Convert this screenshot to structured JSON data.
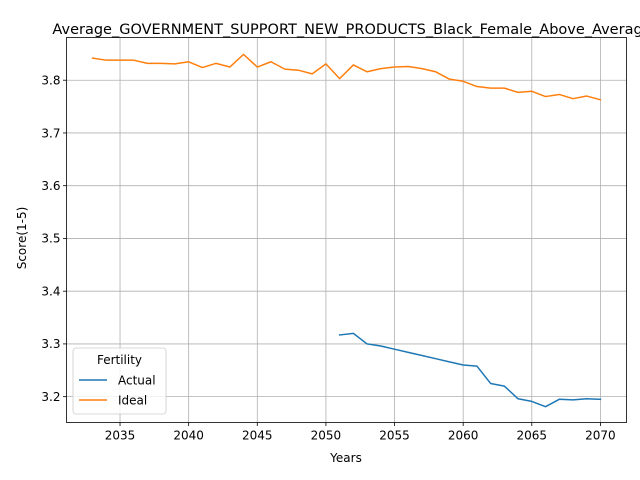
{
  "chart_data": {
    "type": "line",
    "title": "Average_GOVERNMENT_SUPPORT_NEW_PRODUCTS_Black_Female_Above_Average",
    "xlabel": "Years",
    "ylabel": "Score(1-5)",
    "xlim": [
      2031.1,
      2071.9
    ],
    "ylim": [
      3.151,
      3.881
    ],
    "xticks": [
      2035,
      2040,
      2045,
      2050,
      2055,
      2060,
      2065,
      2070
    ],
    "yticks": [
      3.2,
      3.3,
      3.4,
      3.5,
      3.6,
      3.7,
      3.8
    ],
    "xtick_labels": [
      "2035",
      "2040",
      "2045",
      "2050",
      "2055",
      "2060",
      "2065",
      "2070"
    ],
    "ytick_labels": [
      "3.2",
      "3.3",
      "3.4",
      "3.5",
      "3.6",
      "3.7",
      "3.8"
    ],
    "grid": true,
    "legend": {
      "title": "Fertility",
      "location": "lower-left"
    },
    "series": [
      {
        "name": "Actual",
        "color": "#1f77b4",
        "x": [
          2051,
          2052,
          2053,
          2054,
          2055,
          2056,
          2057,
          2058,
          2059,
          2060,
          2061,
          2062,
          2063,
          2064,
          2065,
          2066,
          2067,
          2068,
          2069,
          2070
        ],
        "y": [
          3.317,
          3.32,
          3.3,
          3.296,
          3.29,
          3.284,
          3.278,
          3.272,
          3.266,
          3.26,
          3.258,
          3.225,
          3.22,
          3.196,
          3.191,
          3.181,
          3.195,
          3.194,
          3.196,
          3.195
        ]
      },
      {
        "name": "Ideal",
        "color": "#ff7f0e",
        "x": [
          2033,
          2034,
          2035,
          2036,
          2037,
          2038,
          2039,
          2040,
          2041,
          2042,
          2043,
          2044,
          2045,
          2046,
          2047,
          2048,
          2049,
          2050,
          2051,
          2052,
          2053,
          2054,
          2055,
          2056,
          2057,
          2058,
          2059,
          2060,
          2061,
          2062,
          2063,
          2064,
          2065,
          2066,
          2067,
          2068,
          2069,
          2070
        ],
        "y": [
          3.842,
          3.838,
          3.838,
          3.838,
          3.832,
          3.832,
          3.831,
          3.835,
          3.824,
          3.832,
          3.825,
          3.849,
          3.825,
          3.835,
          3.821,
          3.819,
          3.812,
          3.831,
          3.803,
          3.829,
          3.816,
          3.822,
          3.825,
          3.826,
          3.822,
          3.816,
          3.802,
          3.798,
          3.788,
          3.785,
          3.785,
          3.777,
          3.779,
          3.769,
          3.773,
          3.765,
          3.77,
          3.763
        ]
      }
    ]
  }
}
